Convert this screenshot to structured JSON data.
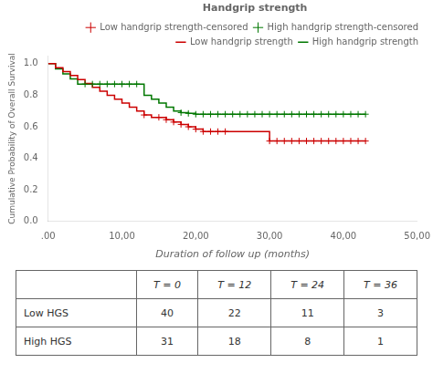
{
  "chart_data": {
    "type": "line",
    "xlabel": "Duration of follow up (months)",
    "ylabel": "Cumulative Probability of Overall Survival",
    "legend_title": "Handgrip strength",
    "legend": "upper right",
    "grid": false,
    "xlim": [
      0,
      50
    ],
    "xticks": [
      {
        "value": 0,
        "label": ".00"
      },
      {
        "value": 10,
        "label": "10,00"
      },
      {
        "value": 20,
        "label": "20,00"
      },
      {
        "value": 30,
        "label": "30,00"
      },
      {
        "value": 40,
        "label": "40,00"
      },
      {
        "value": 50,
        "label": "50,00"
      }
    ],
    "ylim": [
      0.0,
      1.05
    ],
    "yticks": [
      {
        "value": 0.0,
        "label": "0.0"
      },
      {
        "value": 0.2,
        "label": "0.2"
      },
      {
        "value": 0.4,
        "label": "0.4"
      },
      {
        "value": 0.6,
        "label": "0.6"
      },
      {
        "value": 0.8,
        "label": "0.8"
      },
      {
        "value": 1.0,
        "label": "1.0"
      }
    ],
    "series": [
      {
        "name": "Low handgrip strength",
        "type": "step",
        "color": "#cc0000",
        "x": [
          0,
          1,
          2,
          3,
          4,
          5,
          6,
          7,
          8,
          9,
          10,
          11,
          12,
          13,
          14,
          15,
          16,
          17,
          18,
          19,
          20,
          21,
          22,
          23,
          24,
          25,
          26,
          27,
          28,
          29,
          30,
          31,
          32,
          33,
          34,
          35,
          36,
          37,
          38,
          39,
          40,
          41,
          42,
          43
        ],
        "values": [
          1.0,
          0.975,
          0.95,
          0.925,
          0.9,
          0.875,
          0.85,
          0.825,
          0.8,
          0.775,
          0.75,
          0.725,
          0.7,
          0.675,
          0.66,
          0.66,
          0.645,
          0.63,
          0.615,
          0.6,
          0.585,
          0.57,
          0.57,
          0.57,
          0.57,
          0.57,
          0.57,
          0.57,
          0.57,
          0.57,
          0.51,
          0.51,
          0.51,
          0.51,
          0.51,
          0.51,
          0.51,
          0.51,
          0.51,
          0.51,
          0.51,
          0.51,
          0.51,
          0.51
        ]
      },
      {
        "name": "High handgrip strength",
        "type": "step",
        "color": "#007700",
        "x": [
          0,
          1,
          2,
          3,
          4,
          5,
          6,
          7,
          8,
          9,
          10,
          11,
          12,
          13,
          14,
          15,
          16,
          17,
          18,
          19,
          20,
          21,
          22,
          23,
          24,
          25,
          26,
          27,
          28,
          29,
          30,
          31,
          32,
          33,
          34,
          35,
          36,
          37,
          38,
          39,
          40,
          41,
          42,
          43
        ],
        "values": [
          1.0,
          0.968,
          0.935,
          0.903,
          0.871,
          0.871,
          0.871,
          0.871,
          0.871,
          0.871,
          0.871,
          0.871,
          0.871,
          0.8,
          0.775,
          0.75,
          0.725,
          0.7,
          0.69,
          0.685,
          0.68,
          0.68,
          0.68,
          0.68,
          0.68,
          0.68,
          0.68,
          0.68,
          0.68,
          0.68,
          0.68,
          0.68,
          0.68,
          0.68,
          0.68,
          0.68,
          0.68,
          0.68,
          0.68,
          0.68,
          0.68,
          0.68,
          0.68,
          0.68
        ]
      },
      {
        "name": "Low handgrip strength-censored",
        "type": "scatter",
        "marker": "+",
        "color": "#cc0000",
        "x": [
          13,
          15,
          16,
          17,
          18,
          19,
          20,
          21,
          22,
          23,
          24,
          30,
          31,
          32,
          33,
          34,
          35,
          36,
          37,
          38,
          39,
          40,
          41,
          42,
          43
        ],
        "values": [
          0.675,
          0.66,
          0.645,
          0.63,
          0.615,
          0.6,
          0.585,
          0.57,
          0.57,
          0.57,
          0.57,
          0.51,
          0.51,
          0.51,
          0.51,
          0.51,
          0.51,
          0.51,
          0.51,
          0.51,
          0.51,
          0.51,
          0.51,
          0.51,
          0.51
        ]
      },
      {
        "name": "High handgrip strength-censored",
        "type": "scatter",
        "marker": "+",
        "color": "#007700",
        "x": [
          5,
          6,
          7,
          8,
          9,
          10,
          11,
          12,
          18,
          19,
          20,
          21,
          22,
          23,
          24,
          25,
          26,
          27,
          28,
          29,
          30,
          31,
          32,
          33,
          34,
          35,
          36,
          37,
          38,
          39,
          40,
          41,
          42,
          43
        ],
        "values": [
          0.871,
          0.871,
          0.871,
          0.871,
          0.871,
          0.871,
          0.871,
          0.871,
          0.69,
          0.685,
          0.68,
          0.68,
          0.68,
          0.68,
          0.68,
          0.68,
          0.68,
          0.68,
          0.68,
          0.68,
          0.68,
          0.68,
          0.68,
          0.68,
          0.68,
          0.68,
          0.68,
          0.68,
          0.68,
          0.68,
          0.68,
          0.68,
          0.68,
          0.68
        ]
      }
    ],
    "table": {
      "columns": [
        "T = 0",
        "T = 12",
        "T = 24",
        "T = 36"
      ],
      "rows": [
        {
          "label": "Low HGS",
          "values": [
            40,
            22,
            11,
            3
          ]
        },
        {
          "label": "High HGS",
          "values": [
            31,
            18,
            8,
            1
          ]
        }
      ]
    }
  }
}
